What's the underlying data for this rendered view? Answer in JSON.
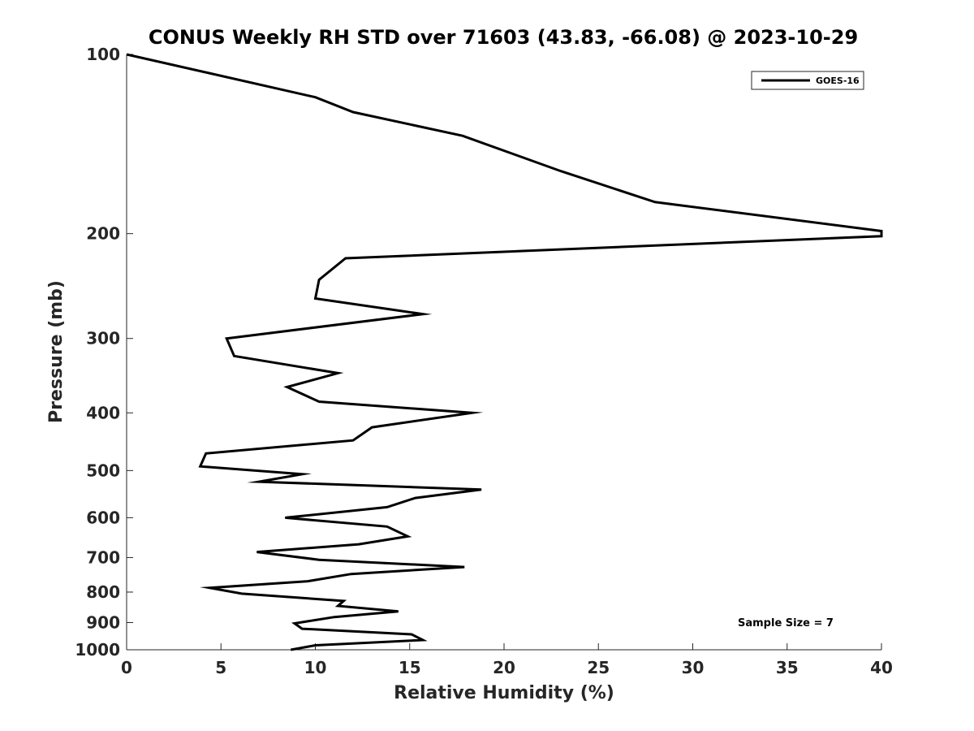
{
  "chart_data": {
    "type": "line",
    "title": "CONUS Weekly RH STD over 71603 (43.83, -66.08) @ 2023-10-29",
    "xlabel": "Relative Humidity (%)",
    "ylabel": "Pressure (mb)",
    "xlim": [
      0,
      40
    ],
    "ylim": [
      100,
      1000
    ],
    "yscale": "log",
    "y_reversed": true,
    "grid": false,
    "legend_position": "top-right",
    "xticks": [
      0,
      5,
      10,
      15,
      20,
      25,
      30,
      35,
      40
    ],
    "yticks": [
      100,
      200,
      300,
      400,
      500,
      600,
      700,
      800,
      900,
      1000
    ],
    "annotation": "Sample Size = 7",
    "series": [
      {
        "name": "GOES-16",
        "color": "#000000",
        "x": [
          0,
          10,
          12,
          17.8,
          23,
          28,
          40,
          40,
          11.6,
          10.2,
          10.0,
          15.7,
          5.3,
          5.7,
          11.2,
          8.5,
          10.2,
          18.3,
          13.0,
          12.0,
          4.2,
          3.9,
          9.3,
          7.0,
          18.8,
          15.3,
          13.8,
          8.4,
          13.8,
          14.9,
          12.3,
          6.9,
          10.2,
          17.9,
          11.9,
          9.6,
          4.4,
          6.1,
          11.5,
          11.2,
          14.4,
          11.0,
          8.9,
          9.3,
          15.1,
          15.7,
          10.0,
          8.7
        ],
        "y": [
          100,
          118,
          125,
          137,
          157,
          177,
          198,
          202,
          220,
          239,
          257,
          273,
          300,
          321,
          343,
          362,
          383,
          400,
          423,
          445,
          468,
          492,
          507,
          522,
          538,
          556,
          576,
          600,
          621,
          645,
          665,
          685,
          706,
          726,
          746,
          767,
          787,
          805,
          828,
          844,
          862,
          881,
          903,
          922,
          942,
          963,
          983,
          1000
        ]
      }
    ]
  }
}
